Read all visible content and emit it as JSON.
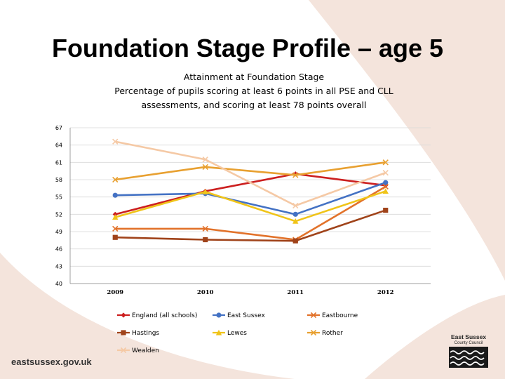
{
  "slide": {
    "title": "Foundation Stage Profile – age 5"
  },
  "footer": {
    "url": "eastsussex.gov.uk",
    "council_line1": "East Sussex",
    "council_line2": "County Council"
  },
  "colors": {
    "background_shape": "#f0ddd4",
    "gridline": "#d9d9d9"
  },
  "chart_data": {
    "type": "line",
    "title_lines": [
      "Attainment at Foundation Stage",
      "Percentage of pupils scoring at least 6 points in all PSE and CLL",
      "assessments, and scoring at least 78 points overall"
    ],
    "x": [
      "2009",
      "2010",
      "2011",
      "2012"
    ],
    "ylim": [
      40,
      67
    ],
    "yticks": [
      67,
      64,
      61,
      58,
      55,
      52,
      49,
      46,
      43,
      40
    ],
    "grid": true,
    "legend_position": "bottom",
    "series": [
      {
        "name": "England (all schools)",
        "color": "#cc1f1f",
        "marker": "diamond",
        "values": [
          52.0,
          56.0,
          59.0,
          57.0
        ]
      },
      {
        "name": "East Sussex",
        "color": "#4472c4",
        "marker": "circle",
        "values": [
          55.3,
          55.6,
          52.0,
          57.5
        ]
      },
      {
        "name": "Eastbourne",
        "color": "#e2722a",
        "marker": "x",
        "values": [
          49.5,
          49.5,
          47.6,
          56.8
        ]
      },
      {
        "name": "Hastings",
        "color": "#a0431a",
        "marker": "square",
        "values": [
          48.0,
          47.6,
          47.4,
          52.7
        ]
      },
      {
        "name": "Lewes",
        "color": "#f0c419",
        "marker": "triangle",
        "values": [
          51.5,
          55.9,
          50.8,
          56.0
        ]
      },
      {
        "name": "Rother",
        "color": "#e8a030",
        "marker": "x",
        "values": [
          58.0,
          60.2,
          58.8,
          61.0
        ]
      },
      {
        "name": "Wealden",
        "color": "#f5c9a5",
        "marker": "x",
        "values": [
          64.6,
          61.5,
          53.5,
          59.2
        ]
      }
    ]
  }
}
